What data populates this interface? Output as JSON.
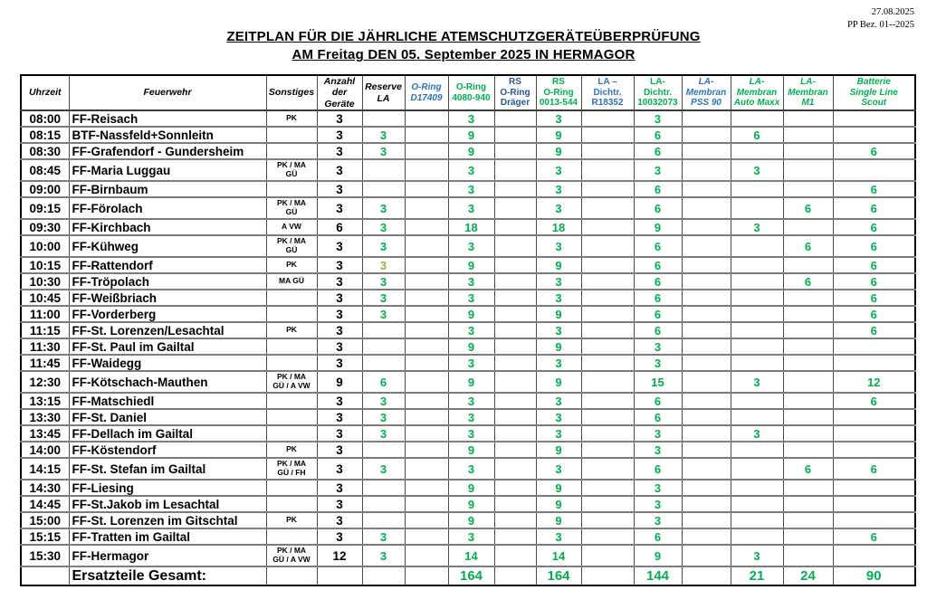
{
  "meta": {
    "date": "27.08.2025",
    "reference": "PP Bez. 01--2025"
  },
  "title": "ZEITPLAN FÜR DIE JÄHRLICHE ATEMSCHUTZGERÄTEÜBERPRÜFUNG",
  "subtitle": "AM Freitag DEN 05. September 2025 IN HERMAGOR",
  "colors": {
    "green": "#00B050",
    "blue": "#2E74B5",
    "darkblue": "#2F5496",
    "olive": "#94B43C",
    "grid_inner": "#4a4a4a",
    "grid_row": "#7d7d7d"
  },
  "table": {
    "columns": [
      {
        "key": "uhrzeit",
        "lines": [
          "Uhrzeit"
        ],
        "style": "h-black"
      },
      {
        "key": "feuerwehr",
        "lines": [
          "Feuerwehr"
        ],
        "style": "h-black"
      },
      {
        "key": "sonstiges",
        "lines": [
          "Sonstiges"
        ],
        "style": "h-black"
      },
      {
        "key": "anzahl_der_geraete",
        "lines": [
          "Anzahl",
          "der",
          "Geräte"
        ],
        "style": "h-black"
      },
      {
        "key": "reserve_la",
        "lines": [
          "Reserve",
          "LA"
        ],
        "style": "h-black"
      },
      {
        "key": "oring_d17409",
        "lines": [
          "O-Ring",
          "D17409"
        ],
        "style": "h-blue-italic"
      },
      {
        "key": "oring_4080_940",
        "lines": [
          "O-Ring",
          "4080-940"
        ],
        "style": "h-green"
      },
      {
        "key": "rs_oring_draeger",
        "lines": [
          "RS",
          "O-Ring",
          "Dräger"
        ],
        "style": "h-darkblue"
      },
      {
        "key": "rs_oring_0013_544",
        "lines": [
          "RS",
          "O-Ring",
          "0013-544"
        ],
        "style": "h-green"
      },
      {
        "key": "la_dichtr_r18352",
        "lines": [
          "LA –",
          "Dichtr.",
          "R18352"
        ],
        "style": "h-blue"
      },
      {
        "key": "la_dichtr_10032073",
        "lines": [
          "LA-",
          "Dichtr.",
          "10032073"
        ],
        "style": "h-green"
      },
      {
        "key": "la_membran_pss_90",
        "lines": [
          "LA-",
          "Membran",
          "PSS 90"
        ],
        "style": "h-blue-bold-italic"
      },
      {
        "key": "la_membran_auto_maxx",
        "lines": [
          "LA-",
          "Membran",
          "Auto Maxx"
        ],
        "style": "h-green-italic"
      },
      {
        "key": "la_membran_m1",
        "lines": [
          "LA-",
          "Membran",
          "M1"
        ],
        "style": "h-green-italic"
      },
      {
        "key": "batterie_single_line_scout",
        "lines": [
          "Batterie",
          "Single Line",
          "Scout"
        ],
        "style": "h-green-italic"
      }
    ],
    "rows": [
      {
        "time": "08:00",
        "feuerwehr": "FF-Reisach",
        "sonstiges": [
          "PK"
        ],
        "anzahl": "3",
        "vals": [
          "",
          "",
          "3",
          "",
          "3",
          "",
          "3",
          "",
          "",
          "",
          ""
        ]
      },
      {
        "time": "08:15",
        "feuerwehr": "BTF-Nassfeld+Sonnleitn",
        "sonstiges": [],
        "anzahl": "3",
        "vals": [
          "3",
          "",
          "9",
          "",
          "9",
          "",
          "6",
          "",
          "6",
          "",
          ""
        ]
      },
      {
        "time": "08:30",
        "feuerwehr": "FF-Grafendorf - Gundersheim",
        "sonstiges": [],
        "anzahl": "3",
        "vals": [
          "3",
          "",
          "9",
          "",
          "9",
          "",
          "6",
          "",
          "",
          "",
          "6"
        ]
      },
      {
        "time": "08:45",
        "feuerwehr": "FF-Maria Luggau",
        "sonstiges": [
          "PK / MA",
          "GÜ"
        ],
        "anzahl": "3",
        "tall": true,
        "vals": [
          "",
          "",
          "3",
          "",
          "3",
          "",
          "3",
          "",
          "3",
          "",
          ""
        ]
      },
      {
        "time": "09:00",
        "feuerwehr": "FF-Birnbaum",
        "sonstiges": [],
        "anzahl": "3",
        "vals": [
          "",
          "",
          "3",
          "",
          "3",
          "",
          "6",
          "",
          "",
          "",
          "6"
        ]
      },
      {
        "time": "09:15",
        "feuerwehr": "FF-Förolach",
        "sonstiges": [
          "PK / MA",
          "GÜ"
        ],
        "anzahl": "3",
        "tall": true,
        "vals": [
          "3",
          "",
          "3",
          "",
          "3",
          "",
          "6",
          "",
          "",
          "6",
          "6"
        ]
      },
      {
        "time": "09:30",
        "feuerwehr": "FF-Kirchbach",
        "sonstiges": [
          "A VW"
        ],
        "anzahl": "6",
        "vals": [
          "3",
          "",
          "18",
          "",
          "18",
          "",
          "9",
          "",
          "3",
          "",
          "6"
        ]
      },
      {
        "time": "10:00",
        "feuerwehr": "FF-Kühweg",
        "sonstiges": [
          "PK / MA",
          "GÜ"
        ],
        "anzahl": "3",
        "tall": true,
        "vals": [
          "3",
          "",
          "3",
          "",
          "3",
          "",
          "6",
          "",
          "",
          "6",
          "6"
        ]
      },
      {
        "time": "10:15",
        "feuerwehr": "FF-Rattendorf",
        "sonstiges": [
          "PK"
        ],
        "anzahl": "3",
        "olive_reserve": true,
        "vals": [
          "3",
          "",
          "9",
          "",
          "9",
          "",
          "6",
          "",
          "",
          "",
          "6"
        ]
      },
      {
        "time": "10:30",
        "feuerwehr": "FF-Tröpolach",
        "sonstiges": [
          "MA GÜ"
        ],
        "anzahl": "3",
        "vals": [
          "3",
          "",
          "3",
          "",
          "3",
          "",
          "6",
          "",
          "",
          "6",
          "6"
        ]
      },
      {
        "time": "10:45",
        "feuerwehr": "FF-Weißbriach",
        "sonstiges": [],
        "anzahl": "3",
        "vals": [
          "3",
          "",
          "3",
          "",
          "3",
          "",
          "6",
          "",
          "",
          "",
          "6"
        ]
      },
      {
        "time": "11:00",
        "feuerwehr": "FF-Vorderberg",
        "sonstiges": [],
        "anzahl": "3",
        "vals": [
          "3",
          "",
          "9",
          "",
          "9",
          "",
          "6",
          "",
          "",
          "",
          "6"
        ]
      },
      {
        "time": "11:15",
        "feuerwehr": "FF-St. Lorenzen/Lesachtal",
        "sonstiges": [
          "PK"
        ],
        "anzahl": "3",
        "vals": [
          "",
          "",
          "3",
          "",
          "3",
          "",
          "6",
          "",
          "",
          "",
          "6"
        ]
      },
      {
        "time": "11:30",
        "feuerwehr": "FF-St. Paul im Gailtal",
        "sonstiges": [],
        "anzahl": "3",
        "vals": [
          "",
          "",
          "9",
          "",
          "9",
          "",
          "3",
          "",
          "",
          "",
          ""
        ]
      },
      {
        "time": "11:45",
        "feuerwehr": "FF-Waidegg",
        "sonstiges": [],
        "anzahl": "3",
        "vals": [
          "",
          "",
          "3",
          "",
          "3",
          "",
          "3",
          "",
          "",
          "",
          ""
        ]
      },
      {
        "time": "12:30",
        "feuerwehr": "FF-Kötschach-Mauthen",
        "sonstiges": [
          "PK / MA",
          "GÜ / A VW"
        ],
        "anzahl": "9",
        "tall": true,
        "vals": [
          "6",
          "",
          "9",
          "",
          "9",
          "",
          "15",
          "",
          "3",
          "",
          "12"
        ]
      },
      {
        "time": "13:15",
        "feuerwehr": "FF-Matschiedl",
        "sonstiges": [],
        "anzahl": "3",
        "vals": [
          "3",
          "",
          "3",
          "",
          "3",
          "",
          "6",
          "",
          "",
          "",
          "6"
        ]
      },
      {
        "time": "13:30",
        "feuerwehr": "FF-St. Daniel",
        "sonstiges": [],
        "anzahl": "3",
        "vals": [
          "3",
          "",
          "3",
          "",
          "3",
          "",
          "6",
          "",
          "",
          "",
          ""
        ]
      },
      {
        "time": "13:45",
        "feuerwehr": "FF-Dellach im Gailtal",
        "sonstiges": [],
        "anzahl": "3",
        "vals": [
          "3",
          "",
          "3",
          "",
          "3",
          "",
          "3",
          "",
          "3",
          "",
          ""
        ]
      },
      {
        "time": "14:00",
        "feuerwehr": "FF-Köstendorf",
        "sonstiges": [
          "PK"
        ],
        "anzahl": "3",
        "vals": [
          "",
          "",
          "9",
          "",
          "9",
          "",
          "3",
          "",
          "",
          "",
          ""
        ]
      },
      {
        "time": "14:15",
        "feuerwehr": "FF-St. Stefan im Gailtal",
        "sonstiges": [
          "PK / MA",
          "GÜ / FH"
        ],
        "anzahl": "3",
        "tall": true,
        "vals": [
          "3",
          "",
          "3",
          "",
          "3",
          "",
          "6",
          "",
          "",
          "6",
          "6"
        ]
      },
      {
        "time": "14:30",
        "feuerwehr": "FF-Liesing",
        "sonstiges": [],
        "anzahl": "3",
        "vals": [
          "",
          "",
          "9",
          "",
          "9",
          "",
          "3",
          "",
          "",
          "",
          ""
        ]
      },
      {
        "time": "14:45",
        "feuerwehr": "FF-St.Jakob im Lesachtal",
        "sonstiges": [],
        "anzahl": "3",
        "vals": [
          "",
          "",
          "9",
          "",
          "9",
          "",
          "3",
          "",
          "",
          "",
          ""
        ]
      },
      {
        "time": "15:00",
        "feuerwehr": "FF-St. Lorenzen im Gitschtal",
        "sonstiges": [
          "PK"
        ],
        "anzahl": "3",
        "vals": [
          "",
          "",
          "9",
          "",
          "9",
          "",
          "3",
          "",
          "",
          "",
          ""
        ]
      },
      {
        "time": "15:15",
        "feuerwehr": "FF-Tratten im Gailtal",
        "sonstiges": [],
        "anzahl": "3",
        "vals": [
          "3",
          "",
          "3",
          "",
          "3",
          "",
          "6",
          "",
          "",
          "",
          "6"
        ]
      },
      {
        "time": "15:30",
        "feuerwehr": "FF-Hermagor",
        "sonstiges": [
          "PK / MA",
          "GÜ / A VW"
        ],
        "anzahl": "12",
        "tall": true,
        "vals": [
          "3",
          "",
          "14",
          "",
          "14",
          "",
          "9",
          "",
          "3",
          "",
          ""
        ]
      }
    ],
    "total": {
      "label": "Ersatzteile Gesamt:",
      "vals": [
        "",
        "",
        "164",
        "",
        "164",
        "",
        "144",
        "",
        "21",
        "24",
        "90"
      ]
    }
  }
}
